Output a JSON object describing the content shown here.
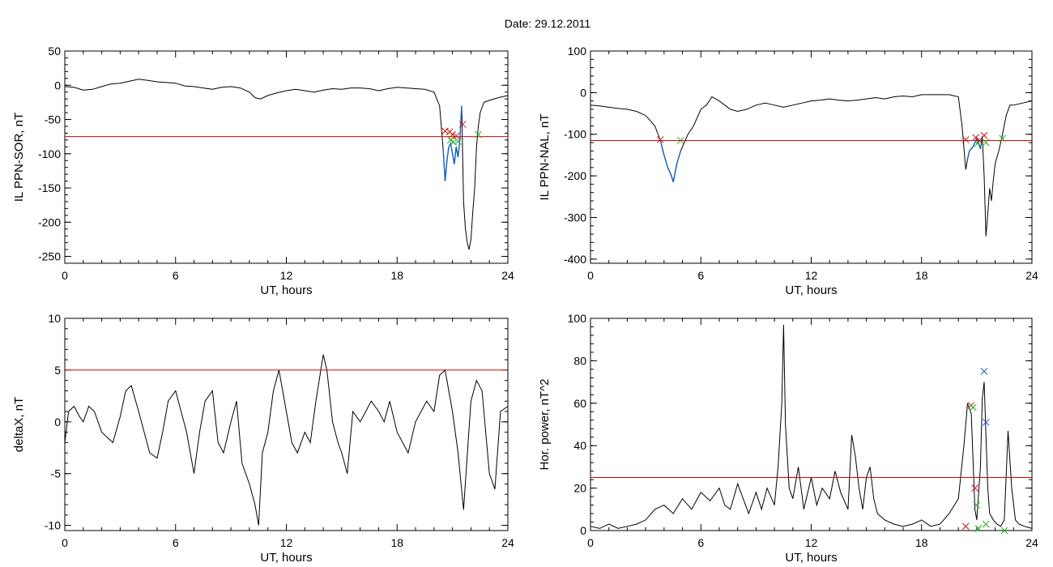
{
  "figure": {
    "title": "Date:  29.12.2011"
  },
  "colors": {
    "trace": "#000000",
    "threshold": "#dd0000",
    "event": "#1060c8",
    "marker_red": "#cc1010",
    "marker_green": "#20b020",
    "marker_blue": "#2060d0"
  },
  "chart_data": [
    {
      "id": "sor",
      "type": "line",
      "xlabel": "UT, hours",
      "ylabel": "IL PPN-SOR, nT",
      "xlim": [
        0,
        24
      ],
      "ylim": [
        -260,
        50
      ],
      "xticks": [
        0,
        6,
        12,
        18,
        24
      ],
      "yticks": [
        50,
        0,
        -50,
        -100,
        -150,
        -200,
        -250
      ],
      "threshold": -75,
      "series": [
        {
          "x": [
            0,
            0.5,
            1,
            1.5,
            2,
            2.5,
            3,
            3.5,
            4,
            4.5,
            5,
            5.5,
            6,
            6.5,
            7,
            7.5,
            8,
            8.5,
            9,
            9.5,
            10,
            10.3,
            10.6,
            11,
            11.5,
            12,
            12.5,
            13,
            13.5,
            14,
            14.5,
            15,
            15.5,
            16,
            16.5,
            17,
            17.5,
            18,
            18.5,
            19,
            19.5,
            20,
            20.3,
            20.5,
            20.6,
            20.7,
            20.8,
            20.9,
            21.0,
            21.1,
            21.2,
            21.3,
            21.4,
            21.5,
            21.6,
            21.7,
            21.8,
            21.9,
            22.0,
            22.1,
            22.2,
            22.3,
            22.4,
            22.5,
            22.7,
            23,
            23.5,
            24
          ],
          "y": [
            -2,
            -3,
            -7,
            -6,
            -2,
            2,
            3,
            6,
            9,
            7,
            5,
            4,
            3,
            -1,
            -2,
            -4,
            -6,
            -3,
            -2,
            -4,
            -10,
            -18,
            -20,
            -15,
            -11,
            -8,
            -6,
            -8,
            -10,
            -7,
            -5,
            -6,
            -4,
            -4,
            -5,
            -8,
            -5,
            -3,
            -4,
            -5,
            -6,
            -10,
            -30,
            -95,
            -140,
            -110,
            -90,
            -85,
            -100,
            -115,
            -90,
            -105,
            -80,
            -30,
            -170,
            -210,
            -230,
            -240,
            -225,
            -185,
            -150,
            -90,
            -60,
            -40,
            -25,
            -22,
            -18,
            -15
          ]
        }
      ],
      "event_x": [
        20.5,
        21.55
      ],
      "markers_red_x": [
        20.6,
        20.85,
        21.0,
        21.2,
        21.55
      ],
      "markers_red_y": [
        -67,
        -68,
        -72,
        -74,
        -57
      ],
      "markers_green_x": [
        20.9,
        21.05,
        21.3,
        22.4
      ],
      "markers_green_y": [
        -80,
        -83,
        -82,
        -72
      ]
    },
    {
      "id": "nal",
      "type": "line",
      "xlabel": "UT, hours",
      "ylabel": "IL PPN-NAL, nT",
      "xlim": [
        0,
        24
      ],
      "ylim": [
        -410,
        100
      ],
      "xticks": [
        0,
        6,
        12,
        18,
        24
      ],
      "yticks": [
        100,
        0,
        -100,
        -200,
        -300,
        -400
      ],
      "threshold": -115,
      "series": [
        {
          "x": [
            0,
            0.5,
            1,
            1.5,
            2,
            2.5,
            3,
            3.5,
            3.8,
            4.0,
            4.2,
            4.4,
            4.5,
            4.7,
            4.9,
            5.1,
            5.3,
            5.6,
            6,
            6.3,
            6.6,
            7,
            7.3,
            7.6,
            8,
            8.5,
            9,
            9.5,
            10,
            10.5,
            11,
            11.5,
            12,
            12.5,
            13,
            13.5,
            14,
            14.5,
            15,
            15.5,
            16,
            16.5,
            17,
            17.5,
            18,
            18.5,
            19,
            19.5,
            20,
            20.2,
            20.4,
            20.5,
            20.6,
            20.8,
            21.0,
            21.2,
            21.3,
            21.4,
            21.5,
            21.6,
            21.7,
            21.8,
            21.9,
            22.0,
            22.2,
            22.4,
            22.6,
            22.8,
            23,
            23.5,
            24
          ],
          "y": [
            -30,
            -32,
            -35,
            -38,
            -40,
            -45,
            -55,
            -80,
            -115,
            -150,
            -180,
            -200,
            -215,
            -170,
            -140,
            -120,
            -100,
            -80,
            -40,
            -30,
            -10,
            -20,
            -30,
            -40,
            -45,
            -40,
            -30,
            -25,
            -30,
            -35,
            -30,
            -25,
            -20,
            -18,
            -15,
            -18,
            -20,
            -18,
            -15,
            -12,
            -15,
            -10,
            -8,
            -10,
            -5,
            -5,
            -5,
            -5,
            -10,
            -80,
            -185,
            -160,
            -140,
            -130,
            -110,
            -135,
            -105,
            -200,
            -345,
            -290,
            -230,
            -260,
            -210,
            -170,
            -140,
            -100,
            -55,
            -30,
            -30,
            -25,
            -20
          ]
        }
      ],
      "event_x": [
        3.8,
        4.9,
        20.5,
        21.3
      ],
      "markers_red_x": [
        3.8,
        20.4,
        20.95,
        21.15,
        21.4
      ],
      "markers_red_y": [
        -113,
        -113,
        -108,
        -115,
        -103
      ],
      "markers_green_x": [
        4.9,
        21.05,
        21.5,
        22.4
      ],
      "markers_green_y": [
        -115,
        -122,
        -120,
        -110
      ]
    },
    {
      "id": "deltax",
      "type": "line",
      "xlabel": "UT, hours",
      "ylabel": "deltaX, nT",
      "xlim": [
        0,
        24
      ],
      "ylim": [
        -10.5,
        10
      ],
      "xticks": [
        0,
        6,
        12,
        18,
        24
      ],
      "yticks": [
        10,
        5,
        0,
        -5,
        -10
      ],
      "threshold": 5,
      "series": [
        {
          "x": [
            0,
            0.2,
            0.5,
            0.8,
            1,
            1.3,
            1.6,
            2,
            2.3,
            2.6,
            3,
            3.3,
            3.6,
            4,
            4.3,
            4.6,
            5,
            5.3,
            5.6,
            6,
            6.3,
            6.6,
            7,
            7.3,
            7.6,
            8,
            8.3,
            8.6,
            9,
            9.3,
            9.6,
            10,
            10.3,
            10.5,
            10.7,
            11,
            11.3,
            11.6,
            12,
            12.3,
            12.6,
            13,
            13.3,
            13.6,
            14,
            14.2,
            14.5,
            14.8,
            15,
            15.3,
            15.6,
            16,
            16.3,
            16.6,
            17,
            17.3,
            17.6,
            18,
            18.3,
            18.6,
            19,
            19.3,
            19.6,
            20,
            20.3,
            20.6,
            21,
            21.3,
            21.6,
            22,
            22.3,
            22.6,
            23,
            23.3,
            23.6,
            24
          ],
          "y": [
            -2,
            1,
            1.5,
            0.5,
            0,
            1.5,
            1,
            -1,
            -1.5,
            -2,
            0.5,
            3,
            3.5,
            1,
            -1,
            -3,
            -3.5,
            -1,
            2,
            3,
            1,
            -1,
            -5,
            -1,
            2,
            3,
            -2,
            -3,
            0,
            2,
            -4,
            -6,
            -8,
            -10,
            -3,
            -1,
            3,
            5,
            1,
            -2,
            -3,
            -1,
            -2,
            2,
            6.5,
            5,
            0,
            -2,
            -3,
            -5,
            1,
            0,
            1,
            2,
            1,
            0,
            2,
            -1,
            -2,
            -3,
            0,
            1,
            2,
            1,
            4.5,
            5,
            1,
            -3,
            -8.5,
            2,
            4,
            3,
            -5,
            -6.5,
            1,
            1.5
          ]
        }
      ],
      "event_x": [],
      "markers_red_x": [],
      "markers_red_y": [],
      "markers_green_x": [],
      "markers_green_y": []
    },
    {
      "id": "power",
      "type": "line",
      "xlabel": "UT, hours",
      "ylabel": "Hor. power, nT^2",
      "xlim": [
        0,
        24
      ],
      "ylim": [
        0,
        100
      ],
      "xticks": [
        0,
        6,
        12,
        18,
        24
      ],
      "yticks": [
        100,
        80,
        60,
        40,
        20,
        0
      ],
      "threshold": 25,
      "series": [
        {
          "x": [
            0,
            0.5,
            1,
            1.5,
            2,
            2.5,
            3,
            3.5,
            4,
            4.5,
            5,
            5.5,
            6,
            6.5,
            7,
            7.3,
            7.6,
            8,
            8.3,
            8.6,
            9,
            9.3,
            9.6,
            10,
            10.2,
            10.4,
            10.5,
            10.6,
            10.8,
            11,
            11.3,
            11.6,
            12,
            12.3,
            12.6,
            13,
            13.3,
            13.6,
            14,
            14.2,
            14.4,
            14.6,
            14.8,
            15,
            15.2,
            15.4,
            15.6,
            16,
            16.5,
            17,
            17.5,
            18,
            18.5,
            19,
            19.5,
            20,
            20.3,
            20.5,
            20.7,
            20.9,
            21.0,
            21.2,
            21.3,
            21.4,
            21.5,
            21.6,
            21.7,
            21.9,
            22.1,
            22.3,
            22.5,
            22.7,
            22.9,
            23.1,
            23.3,
            23.6,
            24
          ],
          "y": [
            2,
            1,
            3,
            1,
            2,
            3,
            5,
            10,
            12,
            8,
            15,
            10,
            18,
            14,
            20,
            12,
            10,
            22,
            15,
            8,
            18,
            10,
            20,
            12,
            30,
            60,
            97,
            50,
            20,
            15,
            30,
            10,
            25,
            12,
            20,
            15,
            28,
            18,
            10,
            45,
            35,
            20,
            10,
            25,
            30,
            15,
            8,
            5,
            3,
            2,
            3,
            5,
            2,
            3,
            8,
            15,
            40,
            60,
            55,
            10,
            5,
            30,
            62,
            70,
            45,
            20,
            8,
            5,
            3,
            2,
            5,
            47,
            20,
            5,
            3,
            2,
            1
          ]
        }
      ],
      "event_x": [],
      "markers_red_x": [
        20.4,
        20.7,
        20.9
      ],
      "markers_red_y": [
        2,
        59,
        20
      ],
      "markers_green_x": [
        20.8,
        21.0,
        21.1,
        21.5,
        22.5
      ],
      "markers_green_y": [
        58,
        12,
        1,
        3,
        0
      ],
      "markers_blue_x": [
        21.4,
        21.5
      ],
      "markers_blue_y": [
        75,
        51
      ]
    }
  ]
}
